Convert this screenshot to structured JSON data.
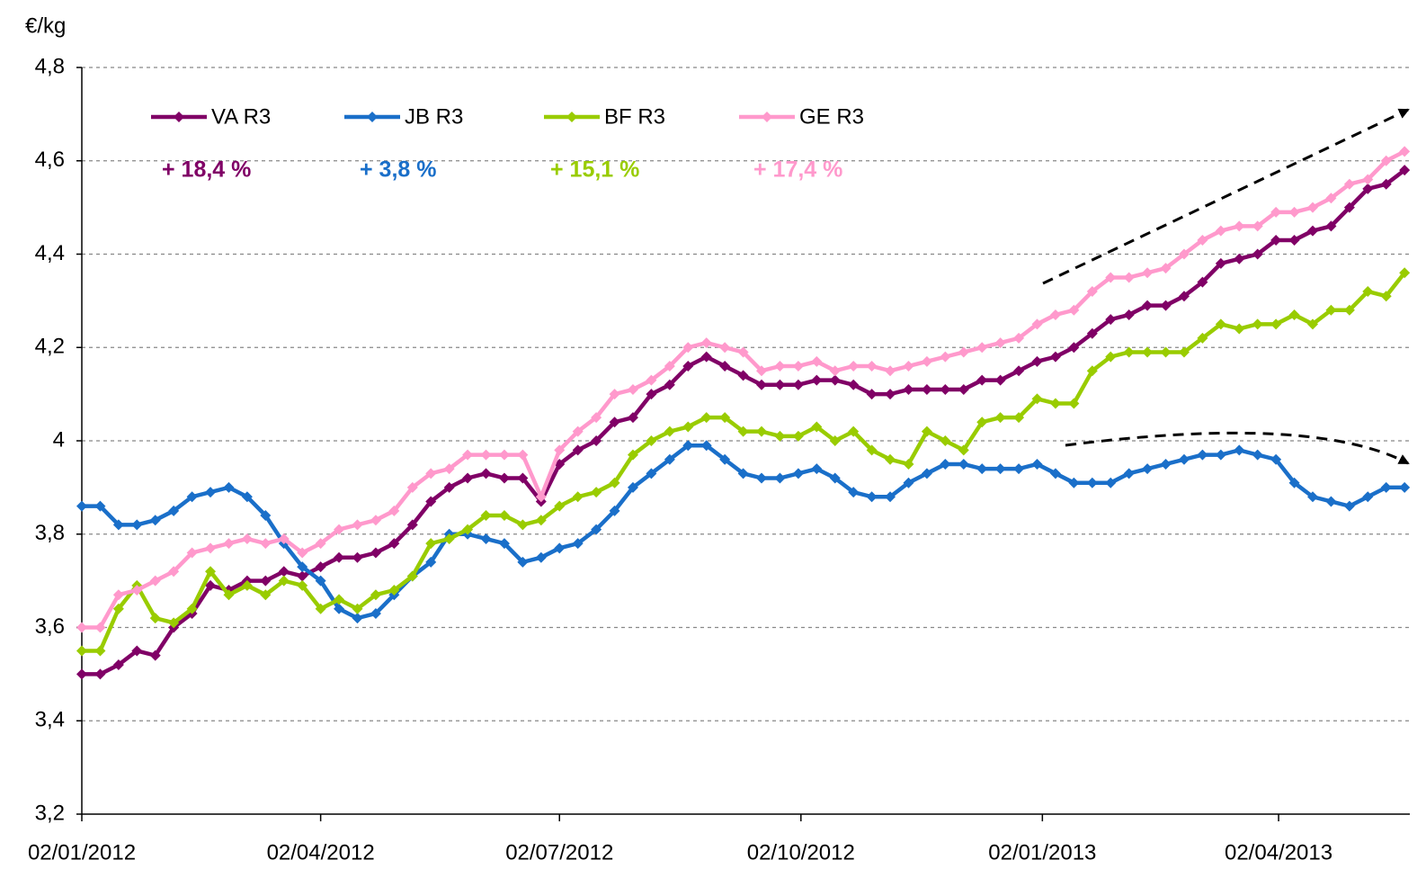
{
  "chart_data": {
    "type": "line",
    "y_label": "€/kg",
    "x": [
      "02/01/2012",
      "09/01/2012",
      "16/01/2012",
      "23/01/2012",
      "30/01/2012",
      "06/02/2012",
      "13/02/2012",
      "20/02/2012",
      "27/02/2012",
      "05/03/2012",
      "12/03/2012",
      "19/03/2012",
      "26/03/2012",
      "02/04/2012",
      "09/04/2012",
      "16/04/2012",
      "23/04/2012",
      "30/04/2012",
      "07/05/2012",
      "14/05/2012",
      "21/05/2012",
      "28/05/2012",
      "04/06/2012",
      "11/06/2012",
      "18/06/2012",
      "25/06/2012",
      "02/07/2012",
      "09/07/2012",
      "16/07/2012",
      "23/07/2012",
      "30/07/2012",
      "06/08/2012",
      "13/08/2012",
      "20/08/2012",
      "27/08/2012",
      "03/09/2012",
      "10/09/2012",
      "17/09/2012",
      "24/09/2012",
      "01/10/2012",
      "08/10/2012",
      "15/10/2012",
      "22/10/2012",
      "29/10/2012",
      "05/11/2012",
      "12/11/2012",
      "19/11/2012",
      "26/11/2012",
      "03/12/2012",
      "10/12/2012",
      "17/12/2012",
      "24/12/2012",
      "31/12/2012",
      "07/01/2013",
      "14/01/2013",
      "21/01/2013",
      "28/01/2013",
      "04/02/2013",
      "11/02/2013",
      "18/02/2013",
      "25/02/2013",
      "04/03/2013",
      "11/03/2013",
      "18/03/2013",
      "25/03/2013",
      "01/04/2013",
      "08/04/2013",
      "15/04/2013",
      "22/04/2013",
      "29/04/2013",
      "06/05/2013",
      "13/05/2013",
      "20/05/2013"
    ],
    "series": [
      {
        "name": "VA R3",
        "color": "#800066",
        "values": [
          3.5,
          3.5,
          3.52,
          3.55,
          3.54,
          3.6,
          3.63,
          3.69,
          3.68,
          3.7,
          3.7,
          3.72,
          3.71,
          3.73,
          3.75,
          3.75,
          3.76,
          3.78,
          3.82,
          3.87,
          3.9,
          3.92,
          3.93,
          3.92,
          3.92,
          3.87,
          3.95,
          3.98,
          4.0,
          4.04,
          4.05,
          4.1,
          4.12,
          4.16,
          4.18,
          4.16,
          4.14,
          4.12,
          4.12,
          4.12,
          4.13,
          4.13,
          4.12,
          4.1,
          4.1,
          4.11,
          4.11,
          4.11,
          4.11,
          4.13,
          4.13,
          4.15,
          4.17,
          4.18,
          4.2,
          4.23,
          4.26,
          4.27,
          4.29,
          4.29,
          4.31,
          4.34,
          4.38,
          4.39,
          4.4,
          4.43,
          4.43,
          4.45,
          4.46,
          4.5,
          4.54,
          4.55,
          4.58
        ]
      },
      {
        "name": "JB R3",
        "color": "#1a6fc9",
        "values": [
          3.86,
          3.86,
          3.82,
          3.82,
          3.83,
          3.85,
          3.88,
          3.89,
          3.9,
          3.88,
          3.84,
          3.78,
          3.73,
          3.7,
          3.64,
          3.62,
          3.63,
          3.67,
          3.71,
          3.74,
          3.8,
          3.8,
          3.79,
          3.78,
          3.74,
          3.75,
          3.77,
          3.78,
          3.81,
          3.85,
          3.9,
          3.93,
          3.96,
          3.99,
          3.99,
          3.96,
          3.93,
          3.92,
          3.92,
          3.93,
          3.94,
          3.92,
          3.89,
          3.88,
          3.88,
          3.91,
          3.93,
          3.95,
          3.95,
          3.94,
          3.94,
          3.94,
          3.95,
          3.93,
          3.91,
          3.91,
          3.91,
          3.93,
          3.94,
          3.95,
          3.96,
          3.97,
          3.97,
          3.98,
          3.97,
          3.96,
          3.91,
          3.88,
          3.87,
          3.86,
          3.88,
          3.9,
          3.9
        ]
      },
      {
        "name": "BF R3",
        "color": "#99cc00",
        "values": [
          3.55,
          3.55,
          3.64,
          3.69,
          3.62,
          3.61,
          3.64,
          3.72,
          3.67,
          3.69,
          3.67,
          3.7,
          3.69,
          3.64,
          3.66,
          3.64,
          3.67,
          3.68,
          3.71,
          3.78,
          3.79,
          3.81,
          3.84,
          3.84,
          3.82,
          3.83,
          3.86,
          3.88,
          3.89,
          3.91,
          3.97,
          4.0,
          4.02,
          4.03,
          4.05,
          4.05,
          4.02,
          4.02,
          4.01,
          4.01,
          4.03,
          4.0,
          4.02,
          3.98,
          3.96,
          3.95,
          4.02,
          4.0,
          3.98,
          4.04,
          4.05,
          4.05,
          4.09,
          4.08,
          4.08,
          4.15,
          4.18,
          4.19,
          4.19,
          4.19,
          4.19,
          4.22,
          4.25,
          4.24,
          4.25,
          4.25,
          4.27,
          4.25,
          4.28,
          4.28,
          4.32,
          4.31,
          4.36
        ]
      },
      {
        "name": "GE R3",
        "color": "#ff99cc",
        "values": [
          3.6,
          3.6,
          3.67,
          3.68,
          3.7,
          3.72,
          3.76,
          3.77,
          3.78,
          3.79,
          3.78,
          3.79,
          3.76,
          3.78,
          3.81,
          3.82,
          3.83,
          3.85,
          3.9,
          3.93,
          3.94,
          3.97,
          3.97,
          3.97,
          3.97,
          3.88,
          3.98,
          4.02,
          4.05,
          4.1,
          4.11,
          4.13,
          4.16,
          4.2,
          4.21,
          4.2,
          4.19,
          4.15,
          4.16,
          4.16,
          4.17,
          4.15,
          4.16,
          4.16,
          4.15,
          4.16,
          4.17,
          4.18,
          4.19,
          4.2,
          4.21,
          4.22,
          4.25,
          4.27,
          4.28,
          4.32,
          4.35,
          4.35,
          4.36,
          4.37,
          4.4,
          4.43,
          4.45,
          4.46,
          4.46,
          4.49,
          4.49,
          4.5,
          4.52,
          4.55,
          4.56,
          4.6,
          4.62
        ]
      }
    ],
    "annotations": [
      {
        "text": "+ 18,4 %",
        "color": "#800066"
      },
      {
        "text": "+ 3,8 %",
        "color": "#1a6fc9"
      },
      {
        "text": "+ 15,1 %",
        "color": "#99cc00"
      },
      {
        "text": "+ 17,4 %",
        "color": "#ff99cc"
      }
    ],
    "xlim": [
      "02/01/2012",
      "22/05/2013"
    ],
    "xticks": [
      "02/01/2012",
      "02/04/2012",
      "02/07/2012",
      "02/10/2012",
      "02/01/2013",
      "02/04/2013"
    ],
    "ylim": [
      3.2,
      4.8
    ],
    "yticks": [
      {
        "value": 3.2,
        "label": "3,2"
      },
      {
        "value": 3.4,
        "label": "3,4"
      },
      {
        "value": 3.6,
        "label": "3,6"
      },
      {
        "value": 3.8,
        "label": "3,8"
      },
      4,
      {
        "value": 4.2,
        "label": "4,2"
      },
      {
        "value": 4.4,
        "label": "4,4"
      },
      {
        "value": 4.6,
        "label": "4,6"
      },
      {
        "value": 4.8,
        "label": "4,8"
      }
    ],
    "grid": true,
    "legend": "top-left"
  }
}
